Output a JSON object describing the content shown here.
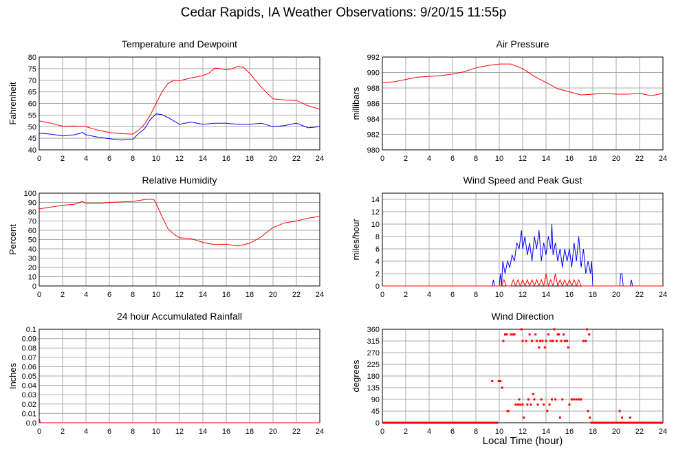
{
  "page_title": "Cedar Rapids, IA Weather Observations: 9/20/15 11:55p",
  "shared_xlabel": "Local Time (hour)",
  "colors": {
    "red": "#ff0000",
    "blue": "#0000ff",
    "grid": "#aaaaaa",
    "axis": "#000000"
  },
  "chart_data": [
    {
      "id": "temp",
      "type": "line",
      "title": "Temperature and Dewpoint",
      "xlabel": "",
      "ylabel": "Fahrenheit",
      "xlim": [
        0,
        24
      ],
      "ylim": [
        40,
        80
      ],
      "xticks": [
        0,
        2,
        4,
        6,
        8,
        10,
        12,
        14,
        16,
        18,
        20,
        22,
        24
      ],
      "yticks": [
        40,
        45,
        50,
        55,
        60,
        65,
        70,
        75,
        80
      ],
      "grid": true,
      "series": [
        {
          "color": "#ff0000",
          "x": [
            0,
            1,
            2,
            3,
            4,
            5,
            6,
            7,
            8,
            8.5,
            9,
            9.5,
            10,
            10.5,
            11,
            11.5,
            12,
            13,
            14,
            14.5,
            15,
            15.5,
            16,
            16.5,
            17,
            17.5,
            18,
            19,
            20,
            21,
            22,
            23,
            24
          ],
          "y": [
            52.5,
            51.5,
            50.2,
            50.3,
            50,
            48.5,
            47.5,
            47,
            46.8,
            48.5,
            51,
            55,
            60,
            65,
            68.5,
            70,
            69.8,
            71,
            72,
            73,
            75.2,
            75,
            74.5,
            75,
            76,
            75.5,
            73,
            67,
            62,
            61.5,
            61.3,
            59,
            57.5
          ]
        },
        {
          "color": "#0000ff",
          "x": [
            0,
            1,
            2,
            3,
            3.7,
            4,
            5,
            6,
            7,
            8,
            8.5,
            9,
            9.5,
            10,
            10.5,
            11,
            11.5,
            12,
            13,
            14,
            15,
            16,
            17,
            18,
            19,
            20,
            21,
            22,
            23,
            24
          ],
          "y": [
            47.2,
            46.8,
            46,
            46.5,
            47.5,
            46.5,
            45.5,
            44.8,
            44.2,
            44.5,
            47,
            49,
            53,
            55.5,
            55.2,
            54,
            52.5,
            51,
            52,
            51,
            51.5,
            51.5,
            51,
            51,
            51.5,
            50,
            50.5,
            51.5,
            49.5,
            50
          ]
        }
      ]
    },
    {
      "id": "pressure",
      "type": "line",
      "title": "Air Pressure",
      "xlabel": "",
      "ylabel": "millibars",
      "xlim": [
        0,
        24
      ],
      "ylim": [
        980,
        992
      ],
      "xticks": [
        0,
        2,
        4,
        6,
        8,
        10,
        12,
        14,
        16,
        18,
        20,
        22,
        24
      ],
      "yticks": [
        980,
        982,
        984,
        986,
        988,
        990,
        992
      ],
      "grid": true,
      "series": [
        {
          "color": "#ff0000",
          "x": [
            0,
            1,
            2,
            3,
            4,
            5,
            6,
            7,
            8,
            9,
            10,
            11,
            12,
            13,
            14,
            15,
            16,
            17,
            18,
            19,
            20,
            21,
            22,
            23,
            24
          ],
          "y": [
            988.7,
            988.8,
            989.1,
            989.4,
            989.5,
            989.6,
            989.8,
            990.1,
            990.6,
            990.9,
            991.1,
            991.1,
            990.5,
            989.5,
            988.7,
            987.9,
            987.5,
            987.1,
            987.2,
            987.3,
            987.2,
            987.2,
            987.3,
            987.0,
            987.3
          ]
        }
      ]
    },
    {
      "id": "humidity",
      "type": "line",
      "title": "Relative Humidity",
      "xlabel": "",
      "ylabel": "Percent",
      "xlim": [
        0,
        24
      ],
      "ylim": [
        0,
        100
      ],
      "xticks": [
        0,
        2,
        4,
        6,
        8,
        10,
        12,
        14,
        16,
        18,
        20,
        22,
        24
      ],
      "yticks": [
        0,
        10,
        20,
        30,
        40,
        50,
        60,
        70,
        80,
        90,
        100
      ],
      "grid": true,
      "series": [
        {
          "color": "#ff0000",
          "x": [
            0,
            1,
            2,
            3,
            3.7,
            4,
            5,
            6,
            7,
            8,
            9,
            9.5,
            9.8,
            10,
            10.5,
            11,
            11.5,
            12,
            13,
            14,
            15,
            16,
            17,
            18,
            19,
            20,
            21,
            22,
            23,
            24
          ],
          "y": [
            83,
            85,
            87,
            88,
            91,
            89,
            89,
            90,
            90.5,
            91,
            93,
            93.5,
            93,
            89,
            75,
            62,
            56,
            52,
            51,
            47,
            44.5,
            45,
            43,
            46,
            53,
            63,
            68,
            70,
            73,
            75
          ]
        }
      ]
    },
    {
      "id": "wind",
      "type": "line",
      "title": "Wind Speed and Peak Gust",
      "xlabel": "",
      "ylabel": "miles/hour",
      "xlim": [
        0,
        24
      ],
      "ylim": [
        0,
        15
      ],
      "xticks": [
        0,
        2,
        4,
        6,
        8,
        10,
        12,
        14,
        16,
        18,
        20,
        22,
        24
      ],
      "yticks": [
        0,
        2,
        4,
        6,
        8,
        10,
        12,
        14
      ],
      "grid": true,
      "series": [
        {
          "color": "#0000ff",
          "x": [
            0,
            9.4,
            9.5,
            9.6,
            10.0,
            10.1,
            10.2,
            10.3,
            10.5,
            10.7,
            10.9,
            11.1,
            11.3,
            11.5,
            11.7,
            11.9,
            12.0,
            12.2,
            12.4,
            12.6,
            12.8,
            13.0,
            13.2,
            13.4,
            13.6,
            13.8,
            14.0,
            14.2,
            14.4,
            14.5,
            14.6,
            14.8,
            15.0,
            15.2,
            15.4,
            15.6,
            15.8,
            16.0,
            16.2,
            16.4,
            16.6,
            16.8,
            17.0,
            17.2,
            17.4,
            17.6,
            17.8,
            17.9,
            18.0,
            20.3,
            20.4,
            20.5,
            20.6,
            21.2,
            21.3,
            21.4,
            24
          ],
          "y": [
            0,
            0,
            1,
            0,
            0,
            2,
            0,
            4,
            2,
            4,
            3,
            5,
            4,
            7,
            6,
            9,
            6,
            8,
            5,
            7,
            4,
            8,
            6,
            9,
            4,
            7,
            5,
            8,
            6,
            10,
            5,
            7,
            4,
            6,
            3,
            6,
            4,
            6,
            3,
            7,
            4,
            8,
            3,
            6,
            2,
            4,
            2,
            4,
            0,
            0,
            2,
            2,
            0,
            0,
            1,
            0,
            0
          ]
        },
        {
          "color": "#ff0000",
          "x": [
            0,
            10.2,
            10.4,
            10.6,
            11.0,
            11.2,
            11.4,
            11.6,
            11.8,
            12.0,
            12.2,
            12.4,
            12.6,
            12.8,
            13.0,
            13.2,
            13.4,
            13.6,
            13.8,
            14.0,
            14.2,
            14.4,
            14.6,
            14.8,
            15.0,
            15.2,
            15.4,
            15.6,
            15.8,
            16.0,
            16.2,
            16.4,
            16.6,
            16.8,
            17.0,
            17.2,
            24
          ],
          "y": [
            0,
            0,
            1,
            0,
            0,
            1,
            0,
            1,
            0,
            1,
            0,
            1,
            0,
            1,
            0,
            1,
            0,
            1,
            0,
            2,
            0,
            1,
            0,
            2,
            0,
            1,
            0,
            1,
            0,
            1,
            0,
            1,
            0,
            1,
            0,
            0,
            0
          ]
        }
      ]
    },
    {
      "id": "rain",
      "type": "line",
      "title": "24 hour Accumulated Rainfall",
      "xlabel": "",
      "ylabel": "Inches",
      "xlim": [
        0,
        24
      ],
      "ylim": [
        0,
        0.1
      ],
      "xticks": [
        0,
        2,
        4,
        6,
        8,
        10,
        12,
        14,
        16,
        18,
        20,
        22,
        24
      ],
      "yticks": [
        "0.0",
        "0.01",
        "0.02",
        "0.03",
        "0.04",
        "0.05",
        "0.06",
        "0.07",
        "0.08",
        "0.09",
        "0.1"
      ],
      "grid": true,
      "series": [
        {
          "color": "#ff0000",
          "x": [
            0,
            0.02,
            0.1,
            24
          ],
          "y": [
            0.006,
            0.004,
            0,
            0
          ]
        }
      ]
    },
    {
      "id": "direction",
      "type": "scatter",
      "title": "Wind Direction",
      "xlabel": "",
      "ylabel": "degrees",
      "xlim": [
        0,
        24
      ],
      "ylim": [
        0,
        360
      ],
      "xticks": [
        0,
        2,
        4,
        6,
        8,
        10,
        12,
        14,
        16,
        18,
        20,
        22,
        24
      ],
      "yticks": [
        0,
        45,
        90,
        135,
        180,
        225,
        270,
        315,
        360
      ],
      "grid": true,
      "zero_band": {
        "x_ranges": [
          [
            0,
            9.9
          ],
          [
            17.8,
            24
          ]
        ],
        "value": 0
      },
      "series": [
        {
          "color": "#ff0000",
          "x": [
            9.4,
            9.95,
            10.1,
            10.25,
            10.35,
            10.5,
            10.65,
            10.7,
            10.8,
            11.0,
            11.2,
            11.3,
            11.4,
            11.6,
            11.7,
            11.8,
            11.9,
            12.0,
            12.0,
            12.1,
            12.3,
            12.4,
            12.5,
            12.6,
            12.7,
            12.8,
            12.9,
            13.0,
            13.1,
            13.2,
            13.3,
            13.4,
            13.5,
            13.6,
            13.7,
            13.8,
            13.9,
            14.0,
            14.1,
            14.2,
            14.3,
            14.4,
            14.5,
            14.6,
            14.7,
            14.8,
            14.9,
            15.0,
            15.1,
            15.2,
            15.3,
            15.4,
            15.5,
            15.6,
            15.7,
            15.8,
            15.9,
            16.0,
            16.2,
            16.4,
            16.6,
            16.8,
            17.0,
            17.2,
            17.4,
            17.5,
            17.6,
            17.7,
            17.75,
            20.3,
            20.5,
            21.2
          ],
          "y": [
            160,
            160,
            160,
            135,
            315,
            340,
            340,
            45,
            45,
            340,
            340,
            340,
            70,
            70,
            90,
            70,
            360,
            315,
            70,
            20,
            315,
            70,
            90,
            340,
            70,
            315,
            110,
            90,
            340,
            315,
            70,
            290,
            315,
            90,
            315,
            70,
            290,
            315,
            45,
            340,
            70,
            315,
            90,
            315,
            360,
            90,
            315,
            340,
            340,
            20,
            315,
            90,
            340,
            315,
            315,
            315,
            290,
            70,
            90,
            90,
            90,
            90,
            90,
            315,
            315,
            360,
            45,
            340,
            20,
            45,
            20,
            20
          ]
        }
      ]
    }
  ]
}
